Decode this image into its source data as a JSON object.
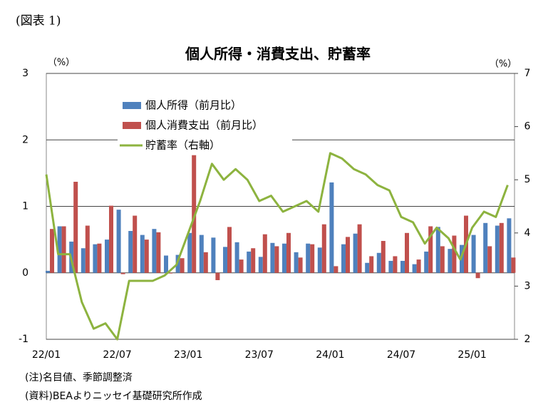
{
  "label": "(図表 1)",
  "chart_data": {
    "type": "bar-line",
    "title": "個人所得・消費支出、貯蓄率",
    "y_unit": "（%）",
    "y2_unit": "（%）",
    "categories": [
      "22/01",
      null,
      null,
      null,
      null,
      null,
      "22/07",
      null,
      null,
      null,
      null,
      null,
      "23/01",
      null,
      null,
      null,
      null,
      null,
      "23/07",
      null,
      null,
      null,
      null,
      null,
      "24/01",
      null,
      null,
      null,
      null,
      null,
      "24/07",
      null,
      null,
      null,
      null,
      null,
      "25/01",
      null,
      null,
      null
    ],
    "series": [
      {
        "name": "個人所得（前月比）",
        "color": "#4f81bd",
        "values": [
          0.03,
          0.7,
          0.47,
          0.37,
          0.43,
          0.5,
          0.95,
          0.63,
          0.57,
          0.66,
          0.26,
          0.27,
          0.6,
          0.57,
          0.53,
          0.39,
          0.46,
          0.32,
          0.24,
          0.45,
          0.44,
          0.31,
          0.44,
          0.38,
          1.36,
          0.43,
          0.59,
          0.15,
          0.3,
          0.18,
          0.18,
          0.13,
          0.32,
          0.69,
          0.36,
          0.42,
          0.57,
          0.75,
          0.71,
          0.82
        ]
      },
      {
        "name": "個人消費支出（前月比）",
        "color": "#c0504d",
        "values": [
          0.66,
          0.7,
          1.37,
          0.71,
          0.44,
          1.01,
          -0.02,
          0.86,
          0.5,
          0.61,
          -0.01,
          0.22,
          1.77,
          0.31,
          -0.11,
          0.69,
          0.2,
          0.37,
          0.58,
          0.4,
          0.6,
          0.23,
          0.43,
          0.73,
          0.1,
          0.54,
          0.73,
          0.25,
          0.48,
          0.25,
          0.6,
          0.2,
          0.7,
          0.4,
          0.56,
          0.86,
          -0.08,
          0.4,
          0.75,
          0.23
        ]
      },
      {
        "name": "貯蓄率（右軸）",
        "color": "#8db33f",
        "axis": "y2",
        "values": [
          5.1,
          3.6,
          3.6,
          2.7,
          2.2,
          2.3,
          2.0,
          3.1,
          3.1,
          3.1,
          3.2,
          3.4,
          4.0,
          4.6,
          5.3,
          5.0,
          5.2,
          5.0,
          4.6,
          4.7,
          4.4,
          4.5,
          4.6,
          4.4,
          5.5,
          5.4,
          5.2,
          5.1,
          4.9,
          4.8,
          4.3,
          4.2,
          3.8,
          4.1,
          3.9,
          3.5,
          4.1,
          4.4,
          4.3,
          4.9
        ]
      }
    ],
    "ylim": [
      -1,
      3
    ],
    "yticks": [
      -1,
      0,
      1,
      2,
      3
    ],
    "y2lim": [
      2,
      7
    ],
    "y2ticks": [
      2,
      3,
      4,
      5,
      6,
      7
    ],
    "grid": true,
    "notes": [
      "(注)名目値、季節調整済",
      "(資料)BEAよりニッセイ基礎研究所作成"
    ]
  }
}
